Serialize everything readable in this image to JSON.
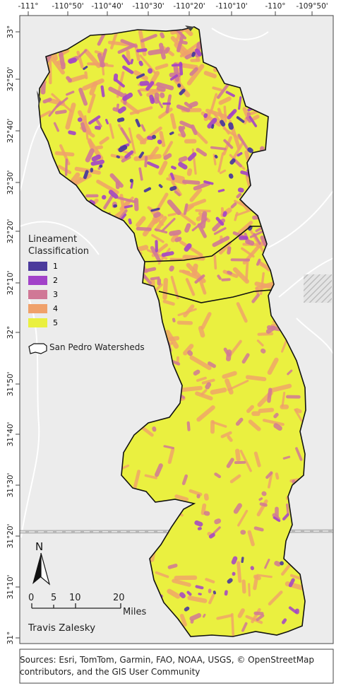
{
  "map": {
    "longitude_ticks": [
      "-111°",
      "-110°50'",
      "-110°40'",
      "-110°30'",
      "-110°20'",
      "-110°10'",
      "-110°",
      "-109°50'"
    ],
    "latitude_ticks": [
      "33°",
      "32°50'",
      "32°40'",
      "32°30'",
      "32°20'",
      "32°10'",
      "32°",
      "31°50'",
      "31°40'",
      "31°30'",
      "31°20'",
      "31°10'",
      "31°"
    ],
    "colors": {
      "class1": "#4b3a9c",
      "class2": "#a242c9",
      "class3": "#d07896",
      "class4": "#f0a16a",
      "class5": "#eaf040",
      "basemap": "#ececec",
      "boundary": "#111111"
    }
  },
  "legend": {
    "title_line1": "Lineament",
    "title_line2": "Classification",
    "items": [
      {
        "label": "1",
        "color": "#4b3a9c"
      },
      {
        "label": "2",
        "color": "#a242c9"
      },
      {
        "label": "3",
        "color": "#d07896"
      },
      {
        "label": "4",
        "color": "#f0a16a"
      },
      {
        "label": "5",
        "color": "#eaf040"
      }
    ],
    "watershed_label": "San Pedro Watersheds"
  },
  "scale_bar": {
    "labels": [
      "0",
      "5",
      "10",
      "20"
    ],
    "unit": "Miles"
  },
  "north_arrow": {
    "label": "N"
  },
  "author": "Travis Zalesky",
  "sources": "Sources: Esri, TomTom, Garmin, FAO, NOAA, USGS, © OpenStreetMap contributors, and the GIS User Community"
}
